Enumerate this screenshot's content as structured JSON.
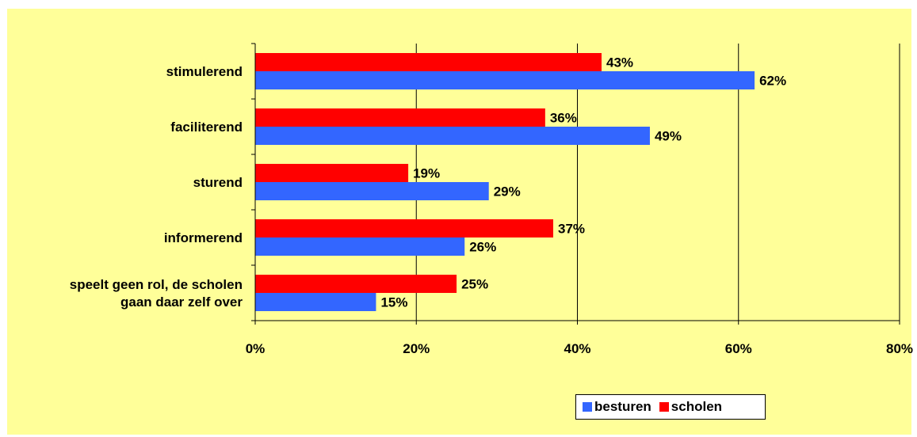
{
  "chart_data": {
    "type": "bar",
    "orientation": "horizontal",
    "categories": [
      [
        "stimulerend"
      ],
      [
        "faciliterend"
      ],
      [
        "sturend"
      ],
      [
        "informerend"
      ],
      [
        "speelt geen rol, de scholen",
        "gaan daar zelf over"
      ]
    ],
    "series": [
      {
        "name": "scholen",
        "color": "#ff0000",
        "values": [
          43,
          36,
          19,
          37,
          25
        ],
        "labels": [
          "43%",
          "36%",
          "19%",
          "37%",
          "25%"
        ]
      },
      {
        "name": "besturen",
        "color": "#3366ff",
        "values": [
          62,
          49,
          29,
          26,
          15
        ],
        "labels": [
          "62%",
          "49%",
          "29%",
          "26%",
          "15%"
        ]
      }
    ],
    "xlim": [
      0,
      80
    ],
    "xticks": [
      0,
      20,
      40,
      60,
      80
    ],
    "xtick_labels": [
      "0%",
      "20%",
      "40%",
      "60%",
      "80%"
    ],
    "grid": true,
    "legend_position": "bottom-right",
    "legend_order": [
      "besturen",
      "scholen"
    ],
    "background_color": "#ffff99"
  }
}
